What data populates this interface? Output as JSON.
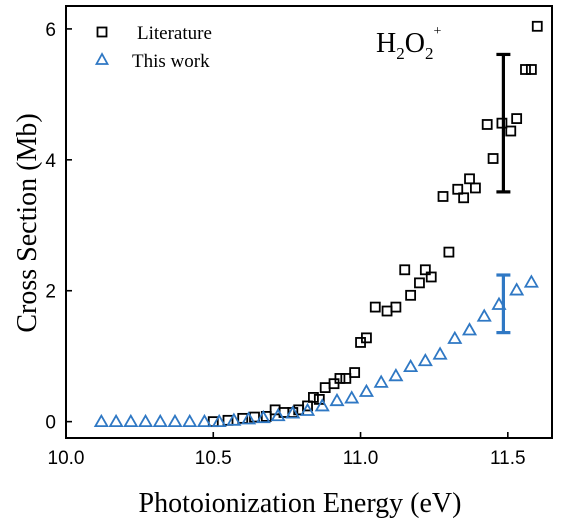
{
  "chart_data": {
    "type": "scatter",
    "xlabel": "Photoionization Energy (eV)",
    "ylabel": "Cross Section (Mb)",
    "xlim": [
      10.0,
      11.65
    ],
    "ylim": [
      -0.25,
      6.35
    ],
    "xticks": [
      10.0,
      10.5,
      11.0,
      11.5
    ],
    "xtick_labels": [
      "10.0",
      "10.5",
      "11.0",
      "11.5"
    ],
    "yticks": [
      0,
      2,
      4,
      6
    ],
    "ytick_labels": [
      "0",
      "2",
      "4",
      "6"
    ],
    "legend_position": "top-left",
    "annotation": {
      "base": "H",
      "sub1": "2",
      "mid": "O",
      "sub2": "2",
      "sup": "+"
    },
    "series": [
      {
        "name": "Literature",
        "marker": "square",
        "color": "#000000",
        "points": [
          [
            10.5,
            0.0
          ],
          [
            10.55,
            0.02
          ],
          [
            10.6,
            0.05
          ],
          [
            10.64,
            0.07
          ],
          [
            10.68,
            0.08
          ],
          [
            10.71,
            0.18
          ],
          [
            10.74,
            0.14
          ],
          [
            10.77,
            0.14
          ],
          [
            10.79,
            0.18
          ],
          [
            10.82,
            0.24
          ],
          [
            10.84,
            0.37
          ],
          [
            10.86,
            0.34
          ],
          [
            10.88,
            0.52
          ],
          [
            10.91,
            0.58
          ],
          [
            10.93,
            0.66
          ],
          [
            10.95,
            0.66
          ],
          [
            10.98,
            0.75
          ],
          [
            11.0,
            1.21
          ],
          [
            11.02,
            1.28
          ],
          [
            11.05,
            1.75
          ],
          [
            11.09,
            1.69
          ],
          [
            11.12,
            1.75
          ],
          [
            11.15,
            2.32
          ],
          [
            11.17,
            1.93
          ],
          [
            11.2,
            2.12
          ],
          [
            11.22,
            2.32
          ],
          [
            11.24,
            2.21
          ],
          [
            11.28,
            3.44
          ],
          [
            11.3,
            2.59
          ],
          [
            11.33,
            3.55
          ],
          [
            11.35,
            3.42
          ],
          [
            11.37,
            3.71
          ],
          [
            11.39,
            3.57
          ],
          [
            11.43,
            4.54
          ],
          [
            11.45,
            4.02
          ],
          [
            11.48,
            4.56
          ],
          [
            11.51,
            4.44
          ],
          [
            11.53,
            4.63
          ],
          [
            11.56,
            5.38
          ],
          [
            11.58,
            5.38
          ],
          [
            11.6,
            6.04
          ]
        ],
        "error_bar": {
          "x": 11.485,
          "low": 3.51,
          "high": 5.61
        }
      },
      {
        "name": "This work",
        "marker": "triangle",
        "color": "#2f78c4",
        "points": [
          [
            10.12,
            0.0
          ],
          [
            10.17,
            0.0
          ],
          [
            10.22,
            0.0
          ],
          [
            10.27,
            0.0
          ],
          [
            10.32,
            0.0
          ],
          [
            10.37,
            0.0
          ],
          [
            10.42,
            0.0
          ],
          [
            10.47,
            0.0
          ],
          [
            10.52,
            0.0
          ],
          [
            10.57,
            0.02
          ],
          [
            10.62,
            0.04
          ],
          [
            10.67,
            0.06
          ],
          [
            10.72,
            0.09
          ],
          [
            10.77,
            0.13
          ],
          [
            10.82,
            0.17
          ],
          [
            10.87,
            0.24
          ],
          [
            10.92,
            0.32
          ],
          [
            10.97,
            0.36
          ],
          [
            11.02,
            0.46
          ],
          [
            11.07,
            0.6
          ],
          [
            11.12,
            0.7
          ],
          [
            11.17,
            0.84
          ],
          [
            11.22,
            0.93
          ],
          [
            11.27,
            1.03
          ],
          [
            11.32,
            1.27
          ],
          [
            11.37,
            1.4
          ],
          [
            11.42,
            1.61
          ],
          [
            11.47,
            1.79
          ],
          [
            11.53,
            2.01
          ],
          [
            11.58,
            2.13
          ]
        ],
        "error_bar": {
          "x": 11.485,
          "low": 1.36,
          "high": 2.24
        }
      }
    ]
  }
}
